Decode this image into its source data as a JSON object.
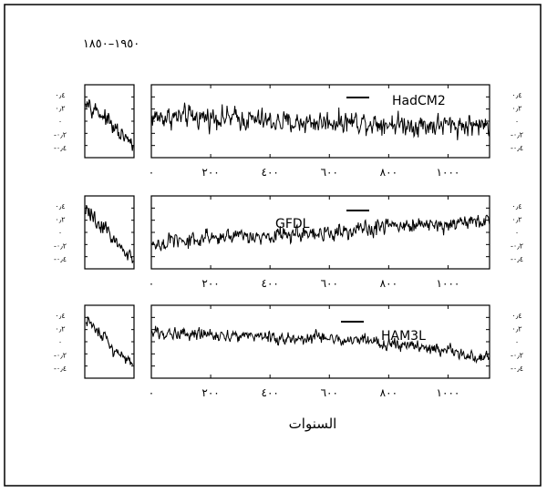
{
  "figure": {
    "period_label": "١٩٥٠–١٨٥٠",
    "xlabel": "السنوات"
  },
  "chart_data": {
    "type": "line",
    "title": "",
    "xlabel": "السنوات",
    "ylabel": "",
    "xlim": [
      0,
      1140
    ],
    "ylim": [
      -0.45,
      0.45
    ],
    "x_ticks": [
      0,
      200,
      400,
      600,
      800,
      1000
    ],
    "x_tick_labels": [
      "٠",
      "٢٠٠",
      "٤٠٠",
      "٦٠٠",
      "٨٠٠",
      "١٠٠٠"
    ],
    "y_tick_labels": [
      "٠٫٤",
      "٠٫٢",
      "٠",
      "-٠٫٢",
      "-٠٫٤"
    ],
    "observed_period_label": "١٩٥٠–١٨٥٠",
    "panels": [
      {
        "name": "HadCM2",
        "series": [
          {
            "name": "HadCM2",
            "x_range": [
              0,
              1140
            ],
            "trend": [
              0.05,
              0.05,
              -0.02,
              0.0,
              -0.05,
              -0.05
            ],
            "noise_amplitude": 0.14
          }
        ],
        "observed": {
          "name": "1850-1950",
          "trend": [
            0.3,
            0.15,
            0.05,
            -0.1,
            -0.2,
            -0.3
          ],
          "noise_amplitude": 0.1
        }
      },
      {
        "name": "GFDL",
        "series": [
          {
            "name": "GFDL",
            "x_range": [
              0,
              1140
            ],
            "trend": [
              -0.15,
              -0.05,
              -0.05,
              0.0,
              0.05,
              0.1,
              0.15
            ],
            "noise_amplitude": 0.1
          }
        ],
        "observed": {
          "name": "1850-1950",
          "trend": [
            0.3,
            0.15,
            0.05,
            -0.1,
            -0.2,
            -0.3
          ],
          "noise_amplitude": 0.1
        }
      },
      {
        "name": "HAM3L",
        "series": [
          {
            "name": "HAM3L",
            "x_range": [
              0,
              1140
            ],
            "trend": [
              0.12,
              0.08,
              0.05,
              0.02,
              -0.05,
              -0.2
            ],
            "noise_amplitude": 0.08
          }
        ],
        "observed": {
          "name": "1850-1950",
          "trend": [
            0.3,
            0.15,
            0.05,
            -0.1,
            -0.2,
            -0.3
          ],
          "noise_amplitude": 0.1
        }
      }
    ]
  }
}
